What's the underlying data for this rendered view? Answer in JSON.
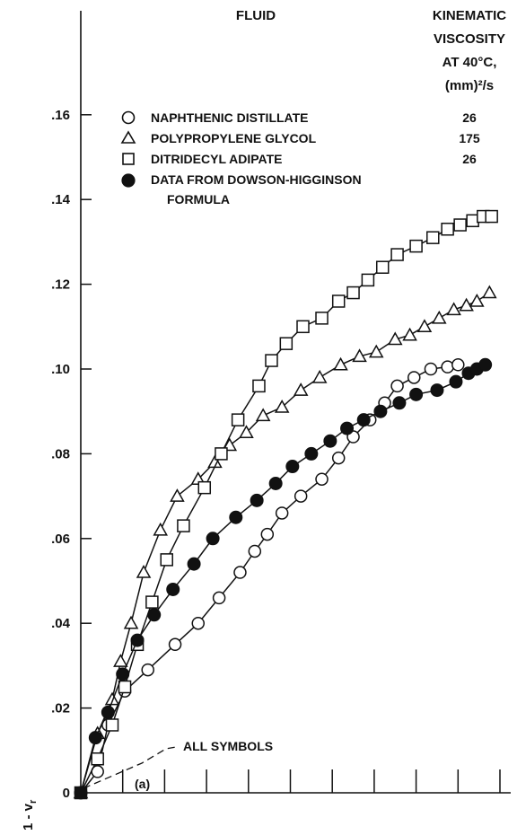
{
  "chart_data": {
    "type": "line",
    "title": "",
    "xlabel": "",
    "ylabel": "1 - v_r",
    "panel_label": "(a)",
    "annotation": "ALL SYMBOLS",
    "ylim": [
      0,
      0.17
    ],
    "xlim": [
      0,
      10
    ],
    "yticks": [
      {
        "value": 0,
        "label": "0"
      },
      {
        "value": 0.02,
        "label": ".02"
      },
      {
        "value": 0.04,
        "label": ".04"
      },
      {
        "value": 0.06,
        "label": ".06"
      },
      {
        "value": 0.08,
        "label": ".08"
      },
      {
        "value": 0.1,
        "label": ".10"
      },
      {
        "value": 0.12,
        "label": ".12"
      },
      {
        "value": 0.14,
        "label": ".14"
      },
      {
        "value": 0.16,
        "label": ".16"
      }
    ],
    "xticks": [
      1,
      2,
      3,
      4,
      5,
      6,
      7,
      8,
      9,
      10
    ],
    "legend": {
      "fluid_header": "FLUID",
      "viscosity_header_lines": [
        "KINEMATIC",
        "VISCOSITY",
        "AT 40°C,",
        "(mm)²/s"
      ]
    },
    "series": [
      {
        "name": "NAPHTHENIC DISTILLATE",
        "viscosity": "26",
        "marker": "circle-open",
        "x": [
          0,
          0.4,
          0.65,
          1.05,
          1.6,
          2.25,
          2.8,
          3.3,
          3.8,
          4.15,
          4.45,
          4.8,
          5.25,
          5.75,
          6.15,
          6.5,
          6.9,
          7.25,
          7.55,
          7.95,
          8.35,
          8.75,
          9.0
        ],
        "y": [
          0,
          0.005,
          0.016,
          0.024,
          0.029,
          0.035,
          0.04,
          0.046,
          0.052,
          0.057,
          0.061,
          0.066,
          0.07,
          0.074,
          0.079,
          0.084,
          0.088,
          0.092,
          0.096,
          0.098,
          0.1,
          0.1005,
          0.101
        ]
      },
      {
        "name": "POLYPROPYLENE GLYCOL",
        "viscosity": "175",
        "marker": "triangle-open",
        "x": [
          0,
          0.4,
          0.75,
          0.95,
          1.2,
          1.5,
          1.9,
          2.3,
          2.8,
          3.2,
          3.55,
          3.95,
          4.35,
          4.8,
          5.25,
          5.7,
          6.2,
          6.65,
          7.05,
          7.5,
          7.85,
          8.2,
          8.55,
          8.9,
          9.2,
          9.45,
          9.75
        ],
        "y": [
          0,
          0.014,
          0.022,
          0.031,
          0.04,
          0.052,
          0.062,
          0.07,
          0.074,
          0.078,
          0.082,
          0.085,
          0.089,
          0.091,
          0.095,
          0.098,
          0.101,
          0.103,
          0.104,
          0.107,
          0.108,
          0.11,
          0.112,
          0.114,
          0.115,
          0.116,
          0.118
        ]
      },
      {
        "name": "DITRIDECYL ADIPATE",
        "viscosity": "26",
        "marker": "square-open",
        "x": [
          0,
          0.4,
          0.75,
          1.05,
          1.35,
          1.7,
          2.05,
          2.45,
          2.95,
          3.35,
          3.75,
          4.25,
          4.55,
          4.9,
          5.3,
          5.75,
          6.15,
          6.5,
          6.85,
          7.2,
          7.55,
          8.0,
          8.4,
          8.75,
          9.05,
          9.35,
          9.6,
          9.8
        ],
        "y": [
          0,
          0.008,
          0.016,
          0.025,
          0.035,
          0.045,
          0.055,
          0.063,
          0.072,
          0.08,
          0.088,
          0.096,
          0.102,
          0.106,
          0.11,
          0.112,
          0.116,
          0.118,
          0.121,
          0.124,
          0.127,
          0.129,
          0.131,
          0.133,
          0.134,
          0.135,
          0.136,
          0.136
        ]
      },
      {
        "name": "DATA FROM DOWSON-HIGGINSON FORMULA",
        "viscosity": "",
        "marker": "circle-filled",
        "x": [
          0,
          0.35,
          0.65,
          1.0,
          1.35,
          1.75,
          2.2,
          2.7,
          3.15,
          3.7,
          4.2,
          4.65,
          5.05,
          5.5,
          5.95,
          6.35,
          6.75,
          7.15,
          7.6,
          8.0,
          8.5,
          8.95,
          9.25,
          9.45,
          9.65
        ],
        "y": [
          0,
          0.013,
          0.019,
          0.028,
          0.036,
          0.042,
          0.048,
          0.054,
          0.06,
          0.065,
          0.069,
          0.073,
          0.077,
          0.08,
          0.083,
          0.086,
          0.088,
          0.09,
          0.092,
          0.094,
          0.095,
          0.097,
          0.099,
          0.1,
          0.101
        ]
      }
    ]
  }
}
